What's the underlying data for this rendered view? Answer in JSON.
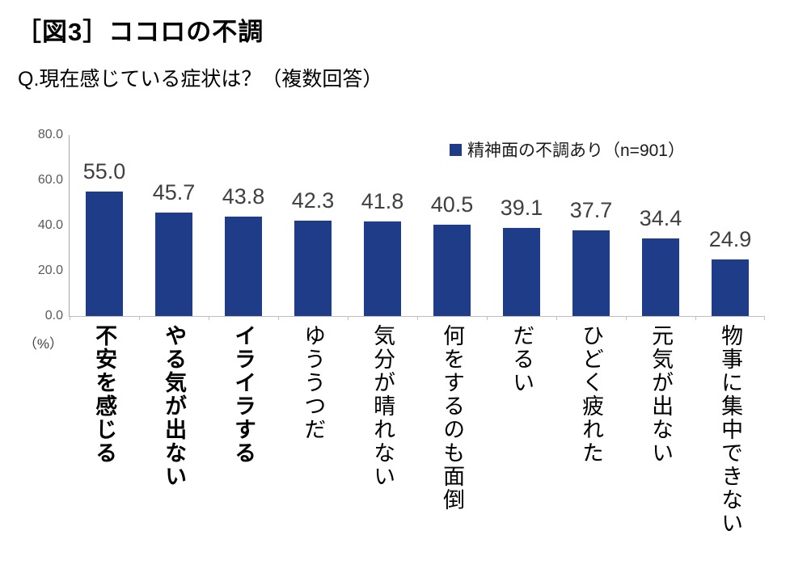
{
  "header": {
    "title": "［図3］ココロの不調",
    "question": "Q.現在感じている症状は？（複数回答）"
  },
  "chart_data": {
    "type": "bar",
    "title": "ココロの不調：現在感じている症状（複数回答）",
    "legend_label": "精神面の不調あり（n=901）",
    "legend_position": "top-right",
    "categories": [
      "不安を感じる",
      "やる気が出ない",
      "イライラする",
      "ゆううつだ",
      "気分が晴れない",
      "何をするのも面倒",
      "だるい",
      "ひどく疲れた",
      "元気が出ない",
      "物事に集中できない"
    ],
    "values": [
      55.0,
      45.7,
      43.8,
      42.3,
      41.8,
      40.5,
      39.1,
      37.7,
      34.4,
      24.9
    ],
    "bold_categories": [
      true,
      true,
      true,
      false,
      false,
      false,
      false,
      false,
      false,
      false
    ],
    "xlabel": "",
    "ylabel": "（%）",
    "ylim": [
      0,
      80
    ],
    "ytick_labels": [
      "80.0",
      "60.0",
      "40.0",
      "20.0",
      "0.0"
    ],
    "grid": false,
    "bar_color": "#1f3c88",
    "value_label_color": "#404040",
    "axis_color": "#a6a6a6"
  }
}
